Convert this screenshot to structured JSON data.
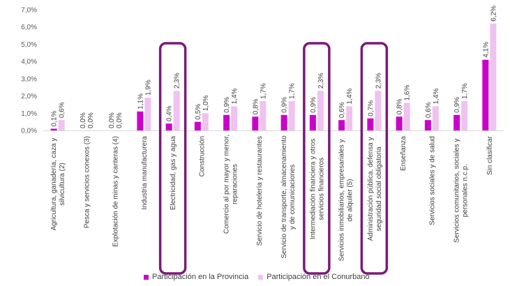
{
  "chart_data": {
    "type": "bar",
    "ylim": [
      0,
      7
    ],
    "yticks": [
      "0,0%",
      "1,0%",
      "2,0%",
      "3,0%",
      "4,0%",
      "5,0%",
      "6,0%",
      "7,0%"
    ],
    "categories": [
      [
        "Agricultura, ganadería, caza y",
        "silvicultura (2)"
      ],
      [
        "Pesca y servicios conexos (3)"
      ],
      [
        "Explotación de minas y canteras (4)"
      ],
      [
        "Industria manufacturera"
      ],
      [
        "Electricidad, gas y agua"
      ],
      [
        "Construcción"
      ],
      [
        "Comercio al por mayor y menor,",
        "reparaciones"
      ],
      [
        "Servicio de hotelería y restaurantes"
      ],
      [
        "Servicio de transporte, almacenamiento",
        "y de comunicaciones"
      ],
      [
        "Intermediación financiera y otros",
        "servicios financieros"
      ],
      [
        "Servicios inmobiliarios, empresariales y",
        "de alquiler (5)"
      ],
      [
        "Administración pública, defensa y",
        "seguridad social obligatoria"
      ],
      [
        "Enseñanza"
      ],
      [
        "Servicios sociales y de salud"
      ],
      [
        "Servicios comunitarios, sociales y",
        "personales n.c.p."
      ],
      [
        "Sin clasificar"
      ]
    ],
    "series": [
      {
        "name": "Participación en la Provincia",
        "color": "#cc00cc",
        "values": [
          0.1,
          0.0,
          0.0,
          1.1,
          0.4,
          0.5,
          0.9,
          0.8,
          0.9,
          0.9,
          0.6,
          0.7,
          0.8,
          0.6,
          0.9,
          4.1
        ],
        "labels": [
          "0,1%",
          "0,0%",
          "0,0%",
          "1,1%",
          "0,4%",
          "0,5%",
          "0,9%",
          "0,8%",
          "0,9%",
          "0,9%",
          "0,6%",
          "0,7%",
          "0,8%",
          "0,6%",
          "0,9%",
          "4,1%"
        ]
      },
      {
        "name": "Participación en el Conurbano",
        "color": "#f0c2f0",
        "values": [
          0.6,
          0.0,
          0.0,
          1.9,
          2.3,
          1.0,
          1.4,
          1.7,
          1.7,
          2.3,
          1.4,
          2.3,
          1.6,
          1.4,
          1.7,
          6.2
        ],
        "labels": [
          "0,6%",
          "0,0%",
          "0,0%",
          "1,9%",
          "2,3%",
          "1,0%",
          "1,4%",
          "1,7%",
          "1,7%",
          "2,3%",
          "1,4%",
          "2,3%",
          "1,6%",
          "1,4%",
          "1,7%",
          "6,2%"
        ]
      }
    ],
    "highlighted_categories": [
      4,
      9,
      11
    ],
    "highlight_color": "#7a1a7a",
    "legend_position": "bottom",
    "grid": false
  }
}
